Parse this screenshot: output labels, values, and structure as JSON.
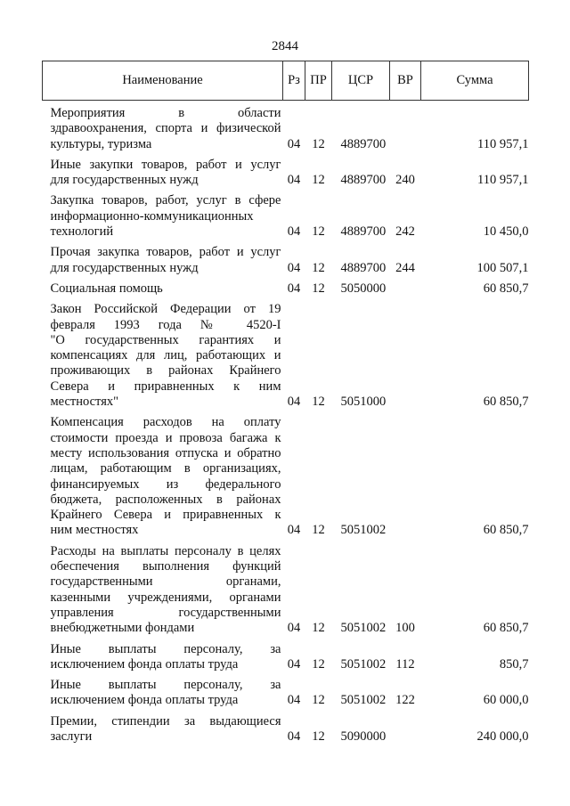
{
  "page_number": "2844",
  "headers": [
    "Наименование",
    "Рз",
    "ПР",
    "ЦСР",
    "ВР",
    "Сумма"
  ],
  "rows": [
    {
      "name": [
        "Мероприятия в области",
        "здравоохранения, спорта и физической",
        "культуры, туризма"
      ],
      "rz": "04",
      "pr": "12",
      "csr": "4889700",
      "vr": "",
      "sum": "110 957,1"
    },
    {
      "name": [
        "Иные закупки товаров, работ и услуг",
        "для государственных нужд"
      ],
      "rz": "04",
      "pr": "12",
      "csr": "4889700",
      "vr": "240",
      "sum": "110 957,1"
    },
    {
      "name": [
        "Закупка товаров, работ, услуг в сфере",
        "информационно-коммуникационных",
        "технологий"
      ],
      "rz": "04",
      "pr": "12",
      "csr": "4889700",
      "vr": "242",
      "sum": "10 450,0"
    },
    {
      "name": [
        "Прочая закупка товаров, работ и услуг",
        "для государственных нужд"
      ],
      "rz": "04",
      "pr": "12",
      "csr": "4889700",
      "vr": "244",
      "sum": "100 507,1"
    },
    {
      "name": [
        "Социальная помощь"
      ],
      "rz": "04",
      "pr": "12",
      "csr": "5050000",
      "vr": "",
      "sum": "60 850,7"
    },
    {
      "name": [
        "Закон Российской Федерации от 19",
        "февраля 1993 года № 4520-I",
        "\"О государственных гарантиях и",
        "компенсациях для лиц, работающих и",
        "проживающих в районах Крайнего",
        "Севера и приравненных к ним",
        "местностях\""
      ],
      "rz": "04",
      "pr": "12",
      "csr": "5051000",
      "vr": "",
      "sum": "60 850,7"
    },
    {
      "name": [
        "Компенсация расходов на оплату",
        "стоимости проезда и провоза багажа к",
        "месту использования отпуска и обратно",
        "лицам, работающим в организациях,",
        "финансируемых из федерального",
        "бюджета, расположенных в районах",
        "Крайнего Севера и приравненных к",
        "ним местностях"
      ],
      "rz": "04",
      "pr": "12",
      "csr": "5051002",
      "vr": "",
      "sum": "60 850,7"
    },
    {
      "name": [
        "Расходы на выплаты персоналу в целях",
        "обеспечения выполнения функций",
        "государственными органами,",
        "казенными учреждениями, органами",
        "управления государственными",
        "внебюджетными фондами"
      ],
      "rz": "04",
      "pr": "12",
      "csr": "5051002",
      "vr": "100",
      "sum": "60 850,7"
    },
    {
      "name": [
        "Иные выплаты персоналу, за",
        "исключением фонда оплаты труда"
      ],
      "rz": "04",
      "pr": "12",
      "csr": "5051002",
      "vr": "112",
      "sum": "850,7"
    },
    {
      "name": [
        "Иные выплаты персоналу, за",
        "исключением фонда оплаты труда"
      ],
      "rz": "04",
      "pr": "12",
      "csr": "5051002",
      "vr": "122",
      "sum": "60 000,0"
    },
    {
      "name": [
        "Премии, стипендии за выдающиеся",
        "заслуги"
      ],
      "rz": "04",
      "pr": "12",
      "csr": "5090000",
      "vr": "",
      "sum": "240 000,0"
    }
  ]
}
